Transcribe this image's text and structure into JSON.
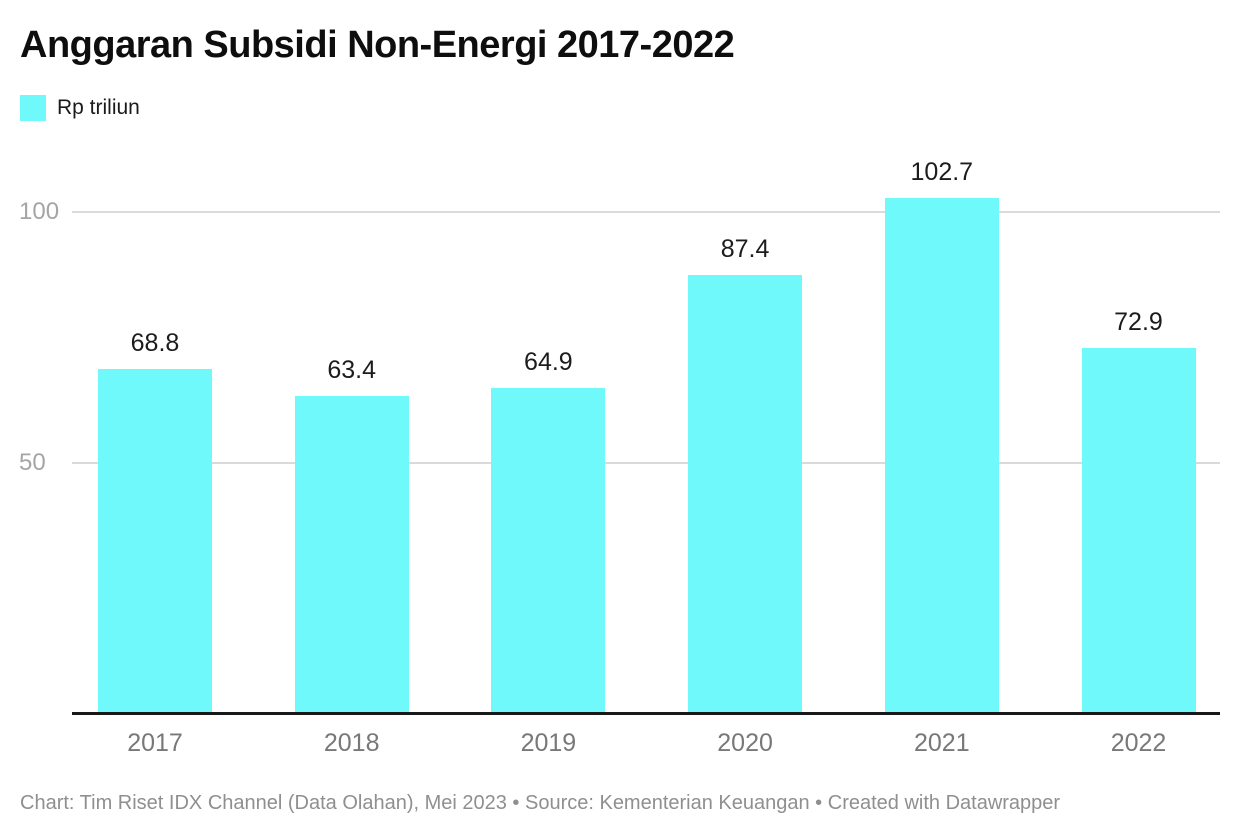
{
  "chart": {
    "title": "Anggaran Subsidi Non-Energi 2017-2022",
    "legend_label": "Rp triliun",
    "footer": "Chart: Tim Riset IDX Channel (Data Olahan), Mei 2023 • Source: Kementerian Keuangan • Created with Datawrapper"
  },
  "colors": {
    "bar": "#70f9fa",
    "gridline": "#dadada",
    "axis_line": "#181818",
    "title_text": "#0e0e0e",
    "value_label_text": "#1c1c1c",
    "y_tick_text": "#a5a5a5",
    "x_tick_text": "#787878",
    "footer_text": "#8f8f8f",
    "background": "#ffffff"
  },
  "chart_data": {
    "type": "bar",
    "title": "Anggaran Subsidi Non-Energi 2017-2022",
    "series_name": "Rp triliun",
    "categories": [
      "2017",
      "2018",
      "2019",
      "2020",
      "2021",
      "2022"
    ],
    "values": [
      68.8,
      63.4,
      64.9,
      87.4,
      102.7,
      72.9
    ],
    "value_labels": [
      "68.8",
      "63.4",
      "64.9",
      "87.4",
      "102.7",
      "72.9"
    ],
    "xlabel": "",
    "ylabel": "Rp triliun",
    "ylim": [
      0,
      128
    ],
    "yticks": [
      50,
      100
    ],
    "ytick_labels": [
      "50",
      "100"
    ],
    "grid": "horizontal-only",
    "legend_position": "top-left",
    "bar_color": "#70f9fa",
    "footer": "Chart: Tim Riset IDX Channel (Data Olahan), Mei 2023 • Source: Kementerian Keuangan • Created with Datawrapper"
  }
}
